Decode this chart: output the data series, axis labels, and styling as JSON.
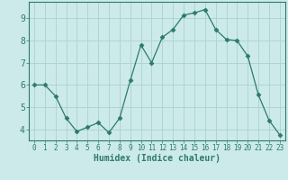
{
  "x": [
    0,
    1,
    2,
    3,
    4,
    5,
    6,
    7,
    8,
    9,
    10,
    11,
    12,
    13,
    14,
    15,
    16,
    17,
    18,
    19,
    20,
    21,
    22,
    23
  ],
  "y": [
    6.0,
    6.0,
    5.5,
    4.5,
    3.9,
    4.1,
    4.3,
    3.85,
    4.5,
    6.2,
    7.8,
    7.0,
    8.15,
    8.5,
    9.15,
    9.25,
    9.4,
    8.5,
    8.05,
    8.0,
    7.3,
    5.55,
    4.4,
    3.75
  ],
  "line_color": "#2d7a6a",
  "marker": "D",
  "marker_size": 2.5,
  "bg_color": "#cceaea",
  "grid_color": "#b0d4d4",
  "xlabel": "Humidex (Indice chaleur)",
  "ylim": [
    3.5,
    9.75
  ],
  "xlim": [
    -0.5,
    23.5
  ],
  "yticks": [
    4,
    5,
    6,
    7,
    8,
    9
  ],
  "xticks": [
    0,
    1,
    2,
    3,
    4,
    5,
    6,
    7,
    8,
    9,
    10,
    11,
    12,
    13,
    14,
    15,
    16,
    17,
    18,
    19,
    20,
    21,
    22,
    23
  ],
  "tick_color": "#2d7a6a",
  "label_color": "#2d7a6a",
  "xlabel_fontsize": 7,
  "ytick_fontsize": 7,
  "xtick_fontsize": 5.5
}
